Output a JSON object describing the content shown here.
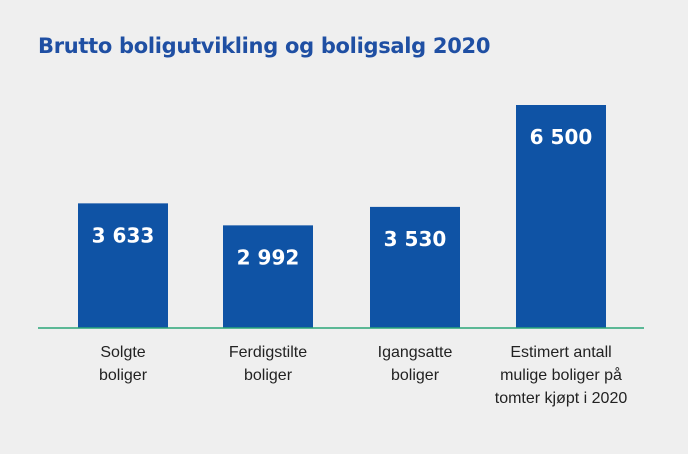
{
  "colors": {
    "background": "#efefef",
    "title": "#1f4fa3",
    "bar": "#0f53a5",
    "baseline": "#2aa579",
    "bar_value_text": "#ffffff",
    "category_text": "#222222"
  },
  "chart_data": {
    "type": "bar",
    "title": "Brutto boligutvikling og boligsalg 2020",
    "xlabel": "",
    "ylabel": "",
    "ylim": [
      0,
      6500
    ],
    "grid": false,
    "legend": "none",
    "categories": [
      [
        "Solgte",
        "boliger"
      ],
      [
        "Ferdigstilte",
        "boliger"
      ],
      [
        "Igangsatte",
        "boliger"
      ],
      [
        "Estimert antall",
        "mulige boliger på",
        "tomter kjøpt i 2020"
      ]
    ],
    "values": [
      3633,
      2992,
      3530,
      6500
    ],
    "value_labels": [
      "3 633",
      "2 992",
      "3 530",
      "6 500"
    ]
  }
}
